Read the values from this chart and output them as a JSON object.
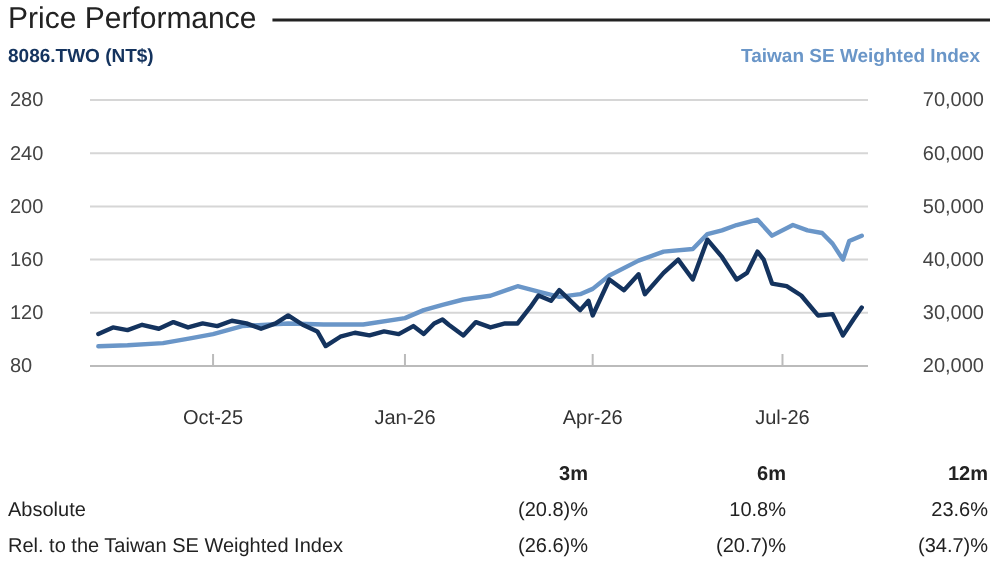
{
  "chart_data": {
    "type": "line",
    "title": "Price Performance",
    "legend": "top",
    "grid": "y",
    "xlim": [
      "2025-08-03",
      "2026-08-11"
    ],
    "xticks": [
      {
        "value": "2025-10-01",
        "label": "Oct-25"
      },
      {
        "value": "2026-01-01",
        "label": "Jan-26"
      },
      {
        "value": "2026-04-01",
        "label": "Apr-26"
      },
      {
        "value": "2026-07-01",
        "label": "Jul-26"
      }
    ],
    "ylim": [
      80,
      280
    ],
    "yticks": [
      80,
      120,
      160,
      200,
      240,
      280
    ],
    "y2lim": [
      20000,
      70000
    ],
    "y2ticks": [
      {
        "value": 20000,
        "label": "20,000"
      },
      {
        "value": 30000,
        "label": "30,000"
      },
      {
        "value": 40000,
        "label": "40,000"
      },
      {
        "value": 50000,
        "label": "50,000"
      },
      {
        "value": 60000,
        "label": "60,000"
      },
      {
        "value": 70000,
        "label": "70,000"
      }
    ],
    "series": [
      {
        "name": "Taiwan SE Weighted Index",
        "color": "#6a96c8",
        "axis": "y2",
        "x": [
          "2025-08-07",
          "2025-08-21",
          "2025-09-07",
          "2025-09-20",
          "2025-10-01",
          "2025-10-15",
          "2025-11-06",
          "2025-11-23",
          "2025-12-12",
          "2026-01-01",
          "2026-01-10",
          "2026-01-19",
          "2026-01-29",
          "2026-02-11",
          "2026-02-24",
          "2026-03-06",
          "2026-03-16",
          "2026-03-26",
          "2026-04-01",
          "2026-04-09",
          "2026-04-23",
          "2026-05-05",
          "2026-05-19",
          "2026-05-26",
          "2026-06-02",
          "2026-06-09",
          "2026-06-19",
          "2026-06-26",
          "2026-07-06",
          "2026-07-13",
          "2026-07-20",
          "2026-07-25",
          "2026-07-30",
          "2026-08-02",
          "2026-08-08"
        ],
        "values": [
          23700,
          23900,
          24300,
          25200,
          26000,
          27500,
          28000,
          27800,
          27800,
          29000,
          30500,
          31500,
          32500,
          33200,
          35000,
          34000,
          33000,
          33500,
          34500,
          37000,
          39800,
          41500,
          42000,
          44800,
          45500,
          46500,
          47500,
          44500,
          46500,
          45500,
          45000,
          43000,
          40000,
          43500,
          44500
        ]
      },
      {
        "name": "8086.TWO (NT$)",
        "color": "#14335e",
        "x": [
          "2025-08-07",
          "2025-08-14",
          "2025-08-21",
          "2025-08-28",
          "2025-09-05",
          "2025-09-12",
          "2025-09-19",
          "2025-09-26",
          "2025-10-03",
          "2025-10-10",
          "2025-10-17",
          "2025-10-24",
          "2025-10-31",
          "2025-11-06",
          "2025-11-13",
          "2025-11-20",
          "2025-11-24",
          "2025-12-01",
          "2025-12-08",
          "2025-12-15",
          "2025-12-22",
          "2025-12-29",
          "2026-01-05",
          "2026-01-10",
          "2026-01-15",
          "2026-01-19",
          "2026-01-22",
          "2026-01-29",
          "2026-02-04",
          "2026-02-11",
          "2026-02-18",
          "2026-02-24",
          "2026-03-02",
          "2026-03-06",
          "2026-03-12",
          "2026-03-16",
          "2026-03-22",
          "2026-03-26",
          "2026-03-30",
          "2026-04-01",
          "2026-04-09",
          "2026-04-16",
          "2026-04-23",
          "2026-04-26",
          "2026-05-05",
          "2026-05-12",
          "2026-05-19",
          "2026-05-26",
          "2026-06-02",
          "2026-06-09",
          "2026-06-14",
          "2026-06-19",
          "2026-06-22",
          "2026-06-26",
          "2026-07-03",
          "2026-07-10",
          "2026-07-18",
          "2026-07-25",
          "2026-07-30",
          "2026-08-04",
          "2026-08-08"
        ],
        "values": [
          104,
          109,
          107,
          111,
          108,
          113,
          109,
          112,
          110,
          114,
          112,
          108,
          112,
          118,
          111,
          106,
          95,
          102,
          105,
          103,
          106,
          104,
          110,
          104,
          112,
          115,
          111,
          103,
          113,
          109,
          112,
          112,
          124,
          133,
          129,
          137,
          128,
          122,
          129,
          118,
          145,
          137,
          149,
          134,
          150,
          160,
          145,
          175,
          162,
          145,
          150,
          166,
          160,
          142,
          140,
          133,
          118,
          119,
          103,
          115,
          124
        ]
      }
    ],
    "annotations": [
      "3m",
      "6m",
      "12m",
      "Absolute",
      "(20.8)%",
      "10.8%",
      "23.6%",
      "Rel. to the Taiwan SE Weighted Index",
      "(26.6)%",
      "(20.7)%",
      "(34.7)%"
    ]
  }
}
